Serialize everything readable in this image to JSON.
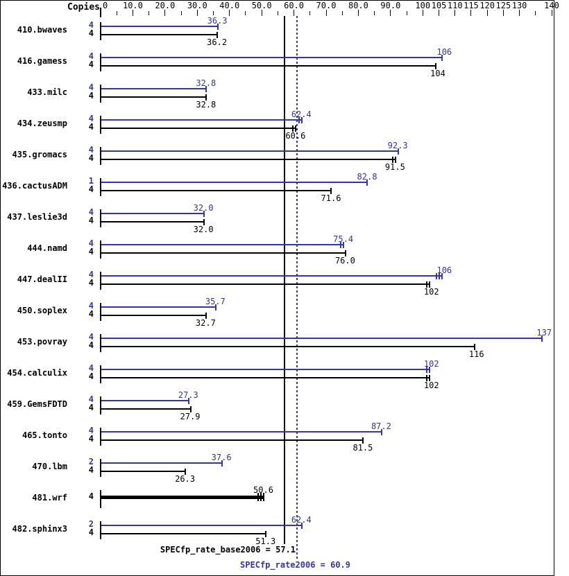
{
  "header": {
    "copies_label": "Copies"
  },
  "colors": {
    "peak": "#3333aa",
    "base": "#000000",
    "background": "#ffffff"
  },
  "axis": {
    "min": 0,
    "max": 140,
    "minor_tick_step": 5,
    "labeled_ticks": [
      {
        "value": 0,
        "label": "0"
      },
      {
        "value": 10,
        "label": "10.0"
      },
      {
        "value": 20,
        "label": "20.0"
      },
      {
        "value": 30,
        "label": "30.0"
      },
      {
        "value": 40,
        "label": "40.0"
      },
      {
        "value": 50,
        "label": "50.0"
      },
      {
        "value": 60,
        "label": "60.0"
      },
      {
        "value": 70,
        "label": "70.0"
      },
      {
        "value": 80,
        "label": "80.0"
      },
      {
        "value": 90,
        "label": "90.0"
      },
      {
        "value": 100,
        "label": "100"
      },
      {
        "value": 105,
        "label": "105"
      },
      {
        "value": 110,
        "label": "110"
      },
      {
        "value": 115,
        "label": "115"
      },
      {
        "value": 120,
        "label": "120"
      },
      {
        "value": 125,
        "label": "125"
      },
      {
        "value": 130,
        "label": "130"
      },
      {
        "value": 140,
        "label": "140"
      }
    ]
  },
  "means": {
    "base": {
      "value": 57.1,
      "label": "SPECfp_rate_base2006 = 57.1"
    },
    "peak": {
      "value": 60.9,
      "label": "SPECfp_rate2006 = 60.9"
    }
  },
  "chart_data": {
    "type": "bar",
    "orientation": "horizontal",
    "xlim": [
      0,
      140
    ],
    "grid": false,
    "legend": "none",
    "series_meta": {
      "peak": {
        "color": "#3333aa"
      },
      "base": {
        "color": "#000000"
      }
    },
    "reference_lines": [
      {
        "name": "SPECfp_rate_base2006",
        "value": 57.1,
        "style": "solid",
        "color": "#000000"
      },
      {
        "name": "SPECfp_rate2006",
        "value": 60.9,
        "style": "dotted",
        "color": "#3333aa"
      }
    ],
    "rows": [
      {
        "benchmark": "410.bwaves",
        "peak": {
          "copies": "4",
          "value": 36.3,
          "label": "36.3",
          "caps": 1
        },
        "base": {
          "copies": "4",
          "value": 36.2,
          "label": "36.2",
          "caps": 1
        }
      },
      {
        "benchmark": "416.gamess",
        "peak": {
          "copies": "4",
          "value": 106,
          "label": "106",
          "caps": 1
        },
        "base": {
          "copies": "4",
          "value": 104,
          "label": "104",
          "caps": 1
        }
      },
      {
        "benchmark": "433.milc",
        "peak": {
          "copies": "4",
          "value": 32.8,
          "label": "32.8",
          "caps": 1
        },
        "base": {
          "copies": "4",
          "value": 32.8,
          "label": "32.8",
          "caps": 1
        }
      },
      {
        "benchmark": "434.zeusmp",
        "peak": {
          "copies": "4",
          "value": 62.4,
          "label": "62.4",
          "caps": 2
        },
        "base": {
          "copies": "4",
          "value": 60.6,
          "label": "60.6",
          "caps": 2
        }
      },
      {
        "benchmark": "435.gromacs",
        "peak": {
          "copies": "4",
          "value": 92.3,
          "label": "92.3",
          "caps": 1
        },
        "base": {
          "copies": "4",
          "value": 91.5,
          "label": "91.5",
          "caps": 2
        }
      },
      {
        "benchmark": "436.cactusADM",
        "peak": {
          "copies": "1",
          "value": 82.8,
          "label": "82.8",
          "caps": 1
        },
        "base": {
          "copies": "4",
          "value": 71.6,
          "label": "71.6",
          "caps": 1
        }
      },
      {
        "benchmark": "437.leslie3d",
        "peak": {
          "copies": "4",
          "value": 32.0,
          "label": "32.0",
          "caps": 1
        },
        "base": {
          "copies": "4",
          "value": 32.0,
          "label": "32.0",
          "caps": 1
        }
      },
      {
        "benchmark": "444.namd",
        "peak": {
          "copies": "4",
          "value": 75.4,
          "label": "75.4",
          "caps": 2
        },
        "base": {
          "copies": "4",
          "value": 76.0,
          "label": "76.0",
          "caps": 1
        }
      },
      {
        "benchmark": "447.dealII",
        "peak": {
          "copies": "4",
          "value": 106,
          "label": "106",
          "caps": 3
        },
        "base": {
          "copies": "4",
          "value": 102,
          "label": "102",
          "caps": 2
        }
      },
      {
        "benchmark": "450.soplex",
        "peak": {
          "copies": "4",
          "value": 35.7,
          "label": "35.7",
          "caps": 1
        },
        "base": {
          "copies": "4",
          "value": 32.7,
          "label": "32.7",
          "caps": 1
        }
      },
      {
        "benchmark": "453.povray",
        "peak": {
          "copies": "4",
          "value": 137,
          "label": "137",
          "caps": 1
        },
        "base": {
          "copies": "4",
          "value": 116,
          "label": "116",
          "caps": 1
        }
      },
      {
        "benchmark": "454.calculix",
        "peak": {
          "copies": "4",
          "value": 102,
          "label": "102",
          "caps": 2
        },
        "base": {
          "copies": "4",
          "value": 102,
          "label": "102",
          "caps": 2
        }
      },
      {
        "benchmark": "459.GemsFDTD",
        "peak": {
          "copies": "4",
          "value": 27.3,
          "label": "27.3",
          "caps": 1
        },
        "base": {
          "copies": "4",
          "value": 27.9,
          "label": "27.9",
          "caps": 1
        }
      },
      {
        "benchmark": "465.tonto",
        "peak": {
          "copies": "4",
          "value": 87.2,
          "label": "87.2",
          "caps": 1
        },
        "base": {
          "copies": "4",
          "value": 81.5,
          "label": "81.5",
          "caps": 1
        }
      },
      {
        "benchmark": "470.lbm",
        "peak": {
          "copies": "2",
          "value": 37.6,
          "label": "37.6",
          "caps": 1
        },
        "base": {
          "copies": "4",
          "value": 26.3,
          "label": "26.3",
          "caps": 1
        }
      },
      {
        "benchmark": "481.wrf",
        "single": true,
        "base": {
          "copies": "4",
          "value": 50.6,
          "label": "50.6",
          "caps": 3
        }
      },
      {
        "benchmark": "482.sphinx3",
        "peak": {
          "copies": "2",
          "value": 62.4,
          "label": "62.4",
          "caps": 1
        },
        "base": {
          "copies": "4",
          "value": 51.3,
          "label": "51.3",
          "caps": 1
        }
      }
    ]
  }
}
